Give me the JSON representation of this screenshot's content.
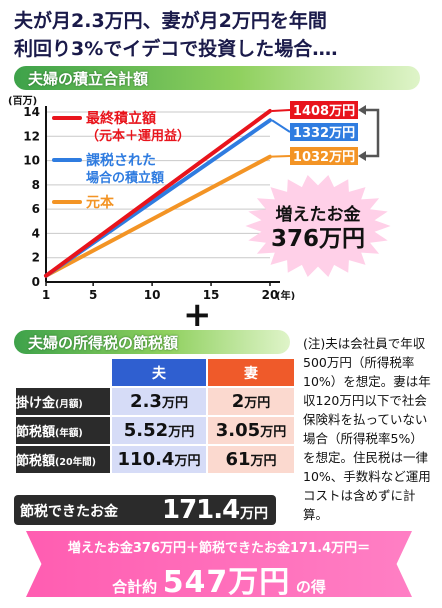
{
  "headline": {
    "line1": "夫が月2.3万円、妻が月2万円を年間",
    "line2": "利回り3%でイデコで投資した場合‥‥"
  },
  "section1_title": "夫婦の積立合計額",
  "chart_data": {
    "type": "line",
    "y_unit": "(百万)",
    "x_unit": "(年)",
    "x_ticks": [
      1,
      5,
      10,
      15,
      20
    ],
    "y_ticks": [
      0,
      2,
      4,
      6,
      8,
      10,
      12,
      14
    ],
    "xlim": [
      1,
      20
    ],
    "ylim": [
      0,
      14
    ],
    "series": [
      {
        "name": "最終積立額",
        "name_sub": "（元本＋運用益）",
        "color": "#e8141c",
        "x": [
          1,
          20
        ],
        "y": [
          0.52,
          14.08
        ],
        "end_label": "1408万円"
      },
      {
        "name": "課税された",
        "name_sub": "場合の積立額",
        "color": "#2f7ce0",
        "x": [
          1,
          20
        ],
        "y": [
          0.52,
          13.32
        ],
        "end_label": "1332万円"
      },
      {
        "name": "元本",
        "name_sub": "",
        "color": "#f39425",
        "x": [
          1,
          20
        ],
        "y": [
          0.52,
          10.32
        ],
        "end_label": "1032万円"
      }
    ]
  },
  "increase": {
    "label": "増えたお金",
    "value": "376万円"
  },
  "plus_sign": "+",
  "section2_title": "夫婦の所得税の節税額",
  "tax_table": {
    "headers": {
      "husband": "夫",
      "wife": "妻"
    },
    "rows": [
      {
        "label": "掛け金",
        "label_sub": "(月額)",
        "husband": "2.3",
        "wife": "2",
        "unit": "万円"
      },
      {
        "label": "節税額",
        "label_sub": "(年額)",
        "husband": "5.52",
        "wife": "3.05",
        "unit": "万円"
      },
      {
        "label": "節税額",
        "label_sub": "(20年間)",
        "husband": "110.4",
        "wife": "61",
        "unit": "万円"
      }
    ]
  },
  "note": "(注)夫は会社員で年収500万円（所得税率10%）を想定。妻は年収120万円以下で社会保険料を払っていない場合（所得税率5%）を想定。住民税は一律10%、手数料など運用コストは含めずに計算。",
  "saved": {
    "label": "節税できたお金",
    "value": "171.4",
    "unit": "万円"
  },
  "total": {
    "line1": "増えたお金376万円＋節税できたお金171.4万円＝",
    "prefix": "合計約",
    "value": "547万円",
    "suffix": "の得"
  },
  "colors": {
    "red": "#e8141c",
    "blue": "#2f7ce0",
    "orange": "#f39425",
    "green": "#3ea24a",
    "pink": "#ff5db1"
  }
}
